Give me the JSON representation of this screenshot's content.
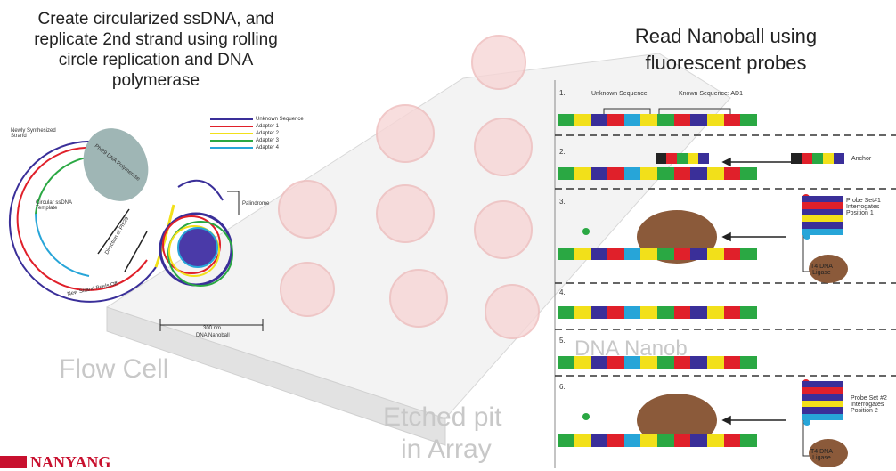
{
  "left_caption": [
    "Create circularized ssDNA, and",
    "replicate 2nd strand using rolling",
    "circle replication and DNA",
    "polymerase"
  ],
  "right_caption": [
    "Read Nanoball using",
    "fluorescent probes"
  ],
  "rca": {
    "newly_synthesized": [
      "Newly Synthesized",
      "Strand"
    ],
    "polymerase": "Phi29 DNA Polymerase",
    "circular_template": [
      "Circular ssDNA",
      "Template"
    ],
    "direction": "Direction of Phi29",
    "peels_off": "New Strand Peels Off",
    "palindrome": "Palindrome",
    "scale": "300 nm",
    "nanoball": "DNA Nanoball",
    "legend": [
      {
        "label": "Unknown Sequence",
        "color": "#3a2f99"
      },
      {
        "label": "Adapter 1",
        "color": "#e0202a"
      },
      {
        "label": "Adapter 2",
        "color": "#f2e01a"
      },
      {
        "label": "Adapter 3",
        "color": "#2aa843"
      },
      {
        "label": "Adapter 4",
        "color": "#27a5d8"
      }
    ]
  },
  "flow_cell": {
    "label": "Flow Cell",
    "pit": [
      "Etched pit",
      "in Array"
    ],
    "faint": "DNA Nanob"
  },
  "probes": {
    "steps": [
      "1.",
      "2.",
      "3.",
      "4.",
      "5.",
      "6."
    ],
    "unknown": "Unknown Sequence",
    "known": "Known Sequence: AD1",
    "anchor": "Anchor",
    "probe1": [
      "Probe Set#1",
      "Interrogates",
      "Position 1"
    ],
    "probe2": [
      "Probe Set #2",
      "Interrogates",
      "Position 2"
    ],
    "ligase": [
      "T4 DNA",
      "Ligase"
    ]
  },
  "logo": "NANYANG"
}
